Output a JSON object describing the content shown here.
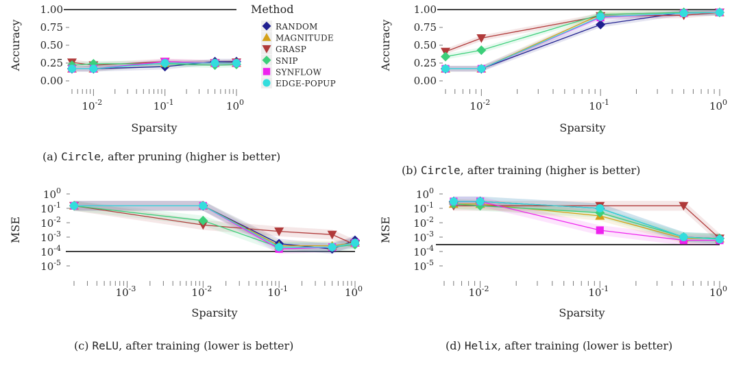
{
  "legend": {
    "title": "Method",
    "entries": [
      "RANDOM",
      "MAGNITUDE",
      "GRASP",
      "SNIP",
      "SYNFLOW",
      "EDGE-POPUP"
    ]
  },
  "methods": [
    {
      "name": "RANDOM",
      "color": "#1f1f8f",
      "marker": "diamond"
    },
    {
      "name": "MAGNITUDE",
      "color": "#d4a017",
      "marker": "triangle-up"
    },
    {
      "name": "GRASP",
      "color": "#b03a3a",
      "marker": "triangle-down"
    },
    {
      "name": "SNIP",
      "color": "#3ccf7a",
      "marker": "diamond"
    },
    {
      "name": "SYNFLOW",
      "color": "#ee22ee",
      "marker": "square"
    },
    {
      "name": "EDGE-POPUP",
      "color": "#33dddd",
      "marker": "circle"
    }
  ],
  "chart_data": [
    {
      "id": "a",
      "type": "line",
      "caption_code": "Circle",
      "caption_rest": ", after pruning (higher is better)",
      "caption_prefix": "(a)",
      "xlabel": "Sparsity",
      "ylabel": "Accuracy",
      "xscale": "log",
      "xlim": [
        0.005,
        1.0
      ],
      "ylim": [
        0,
        1
      ],
      "yticks": [
        "0.00",
        "0.25",
        "0.50",
        "0.75",
        "1.00"
      ],
      "yticks_values": [
        0,
        0.25,
        0.5,
        0.75,
        1.0
      ],
      "xticks_major": [
        0.01,
        0.1,
        1
      ],
      "xticks_major_labels": [
        {
          "b": "10",
          "e": "-2"
        },
        {
          "b": "10",
          "e": "-1"
        },
        {
          "b": "10",
          "e": "0"
        }
      ],
      "reference_line": 1.0,
      "x": [
        0.005,
        0.01,
        0.1,
        0.5,
        1.0
      ],
      "series": [
        {
          "name": "RANDOM",
          "values": [
            0.17,
            0.17,
            0.2,
            0.27,
            0.27
          ]
        },
        {
          "name": "MAGNITUDE",
          "values": [
            0.17,
            0.17,
            0.25,
            0.25,
            0.25
          ]
        },
        {
          "name": "GRASP",
          "values": [
            0.26,
            0.22,
            0.27,
            0.25,
            0.26
          ]
        },
        {
          "name": "SNIP",
          "values": [
            0.22,
            0.24,
            0.24,
            0.22,
            0.23
          ]
        },
        {
          "name": "SYNFLOW",
          "values": [
            0.17,
            0.17,
            0.27,
            0.25,
            0.25
          ]
        },
        {
          "name": "EDGE-POPUP",
          "values": [
            0.17,
            0.17,
            0.25,
            0.25,
            0.25
          ]
        }
      ]
    },
    {
      "id": "b",
      "type": "line",
      "caption_code": "Circle",
      "caption_rest": ", after training (higher is better)",
      "caption_prefix": "(b)",
      "xlabel": "Sparsity",
      "ylabel": "Accuracy",
      "xscale": "log",
      "xlim": [
        0.005,
        1.0
      ],
      "ylim": [
        0,
        1
      ],
      "yticks": [
        "0.00",
        "0.25",
        "0.50",
        "0.75",
        "1.00"
      ],
      "yticks_values": [
        0,
        0.25,
        0.5,
        0.75,
        1.0
      ],
      "xticks_major": [
        0.01,
        0.1,
        1
      ],
      "xticks_major_labels": [
        {
          "b": "10",
          "e": "-2"
        },
        {
          "b": "10",
          "e": "-1"
        },
        {
          "b": "10",
          "e": "0"
        }
      ],
      "reference_line": 1.0,
      "x": [
        0.005,
        0.01,
        0.1,
        0.5,
        1.0
      ],
      "series": [
        {
          "name": "RANDOM",
          "values": [
            0.17,
            0.17,
            0.79,
            0.96,
            0.96
          ]
        },
        {
          "name": "MAGNITUDE",
          "values": [
            0.17,
            0.17,
            0.93,
            0.96,
            0.96
          ]
        },
        {
          "name": "GRASP",
          "values": [
            0.41,
            0.6,
            0.91,
            0.92,
            0.96
          ]
        },
        {
          "name": "SNIP",
          "values": [
            0.34,
            0.43,
            0.93,
            0.96,
            0.96
          ]
        },
        {
          "name": "SYNFLOW",
          "values": [
            0.17,
            0.17,
            0.89,
            0.95,
            0.96
          ]
        },
        {
          "name": "EDGE-POPUP",
          "values": [
            0.17,
            0.17,
            0.9,
            0.95,
            0.96
          ]
        }
      ]
    },
    {
      "id": "c",
      "type": "line",
      "caption_code": "ReLU",
      "caption_rest": ", after training (lower is better)",
      "caption_prefix": "(c)",
      "xlabel": "Sparsity",
      "ylabel": "MSE",
      "xscale": "log",
      "yscale": "log",
      "xlim": [
        0.0002,
        1.0
      ],
      "ylim": [
        1e-05,
        1
      ],
      "yticks": [
        {
          "b": "10",
          "e": "-5"
        },
        {
          "b": "10",
          "e": "-4"
        },
        {
          "b": "10",
          "e": "-3"
        },
        {
          "b": "10",
          "e": "-2"
        },
        {
          "b": "10",
          "e": "-1"
        },
        {
          "b": "10",
          "e": "0"
        }
      ],
      "yticks_values": [
        1e-05,
        0.0001,
        0.001,
        0.01,
        0.1,
        1
      ],
      "xticks_major": [
        0.001,
        0.01,
        0.1,
        1
      ],
      "xticks_major_labels": [
        {
          "b": "10",
          "e": "-3"
        },
        {
          "b": "10",
          "e": "-2"
        },
        {
          "b": "10",
          "e": "-1"
        },
        {
          "b": "10",
          "e": "0"
        }
      ],
      "reference_line": 0.0001,
      "x": [
        0.0002,
        0.01,
        0.1,
        0.5,
        1.0
      ],
      "series": [
        {
          "name": "RANDOM",
          "values": [
            0.15,
            0.15,
            0.00035,
            0.00015,
            0.0006
          ]
        },
        {
          "name": "MAGNITUDE",
          "values": [
            0.15,
            0.15,
            0.00025,
            0.00025,
            0.0004
          ]
        },
        {
          "name": "GRASP",
          "values": [
            0.15,
            0.007,
            0.0025,
            0.0015,
            0.0003
          ]
        },
        {
          "name": "SNIP",
          "values": [
            0.15,
            0.014,
            0.0002,
            0.0002,
            0.0003
          ]
        },
        {
          "name": "SYNFLOW",
          "values": [
            0.15,
            0.15,
            0.00015,
            0.0002,
            0.0004
          ]
        },
        {
          "name": "EDGE-POPUP",
          "values": [
            0.15,
            0.15,
            0.0002,
            0.0002,
            0.0004
          ]
        }
      ]
    },
    {
      "id": "d",
      "type": "line",
      "caption_code": "Helix",
      "caption_rest": ", after training (lower is better)",
      "caption_prefix": "(d)",
      "xlabel": "Sparsity",
      "ylabel": "MSE",
      "xscale": "log",
      "yscale": "log",
      "xlim": [
        0.005,
        1.0
      ],
      "ylim": [
        1e-05,
        1
      ],
      "yticks": [
        {
          "b": "10",
          "e": "-5"
        },
        {
          "b": "10",
          "e": "-4"
        },
        {
          "b": "10",
          "e": "-3"
        },
        {
          "b": "10",
          "e": "-2"
        },
        {
          "b": "10",
          "e": "-1"
        },
        {
          "b": "10",
          "e": "0"
        }
      ],
      "yticks_values": [
        1e-05,
        0.0001,
        0.001,
        0.01,
        0.1,
        1
      ],
      "xticks_major": [
        0.01,
        0.1,
        1
      ],
      "xticks_major_labels": [
        {
          "b": "10",
          "e": "-2"
        },
        {
          "b": "10",
          "e": "-1"
        },
        {
          "b": "10",
          "e": "0"
        }
      ],
      "reference_line": 0.0003,
      "x": [
        0.006,
        0.01,
        0.1,
        0.5,
        1.0
      ],
      "series": [
        {
          "name": "RANDOM",
          "values": [
            0.3,
            0.3,
            0.1,
            0.001,
            0.0008
          ]
        },
        {
          "name": "MAGNITUDE",
          "values": [
            0.2,
            0.2,
            0.03,
            0.0008,
            0.0008
          ]
        },
        {
          "name": "GRASP",
          "values": [
            0.15,
            0.15,
            0.15,
            0.15,
            0.0008
          ]
        },
        {
          "name": "SNIP",
          "values": [
            0.2,
            0.15,
            0.05,
            0.001,
            0.0008
          ]
        },
        {
          "name": "SYNFLOW",
          "values": [
            0.3,
            0.3,
            0.003,
            0.0006,
            0.0006
          ]
        },
        {
          "name": "EDGE-POPUP",
          "values": [
            0.3,
            0.3,
            0.1,
            0.001,
            0.0007
          ]
        }
      ]
    }
  ]
}
